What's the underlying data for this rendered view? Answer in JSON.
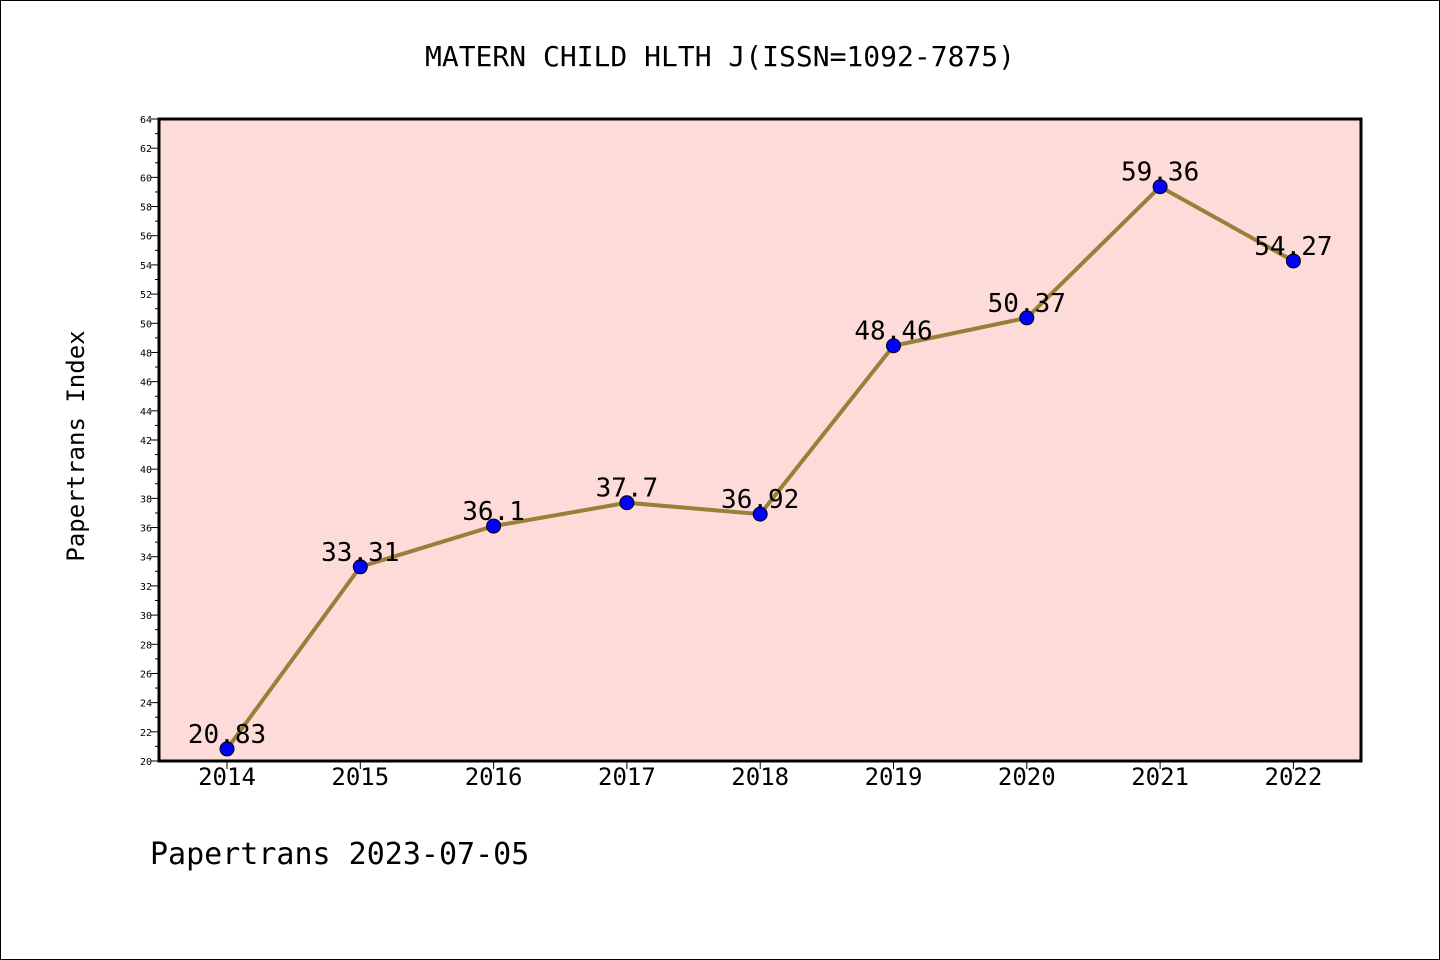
{
  "chart_data": {
    "type": "line",
    "title": "MATERN CHILD HLTH J(ISSN=1092-7875)",
    "ylabel": "Papertrans Index",
    "xlabel": "",
    "x": [
      "2014",
      "2015",
      "2016",
      "2017",
      "2018",
      "2019",
      "2020",
      "2021",
      "2022"
    ],
    "series": [
      {
        "values": [
          20.83,
          33.31,
          36.1,
          37.7,
          36.92,
          48.46,
          50.37,
          59.36,
          54.27
        ],
        "labels": [
          "20.83",
          "33.31",
          "36.1",
          "37.7",
          "36.92",
          "48.46",
          "50.37",
          "59.36",
          "54.27"
        ]
      }
    ],
    "ylim": [
      20,
      64
    ],
    "yticks": [
      "20",
      "22",
      "24",
      "26",
      "28",
      "30",
      "32",
      "34",
      "36",
      "38",
      "40",
      "42",
      "44",
      "46",
      "48",
      "50",
      "52",
      "54",
      "56",
      "58",
      "60",
      "62",
      "64"
    ],
    "grid": false,
    "colors": {
      "plot_background": "#fddbd9",
      "line": "#9a7f3a",
      "marker": "#0000ff"
    }
  },
  "footer": "Papertrans 2023-07-05"
}
